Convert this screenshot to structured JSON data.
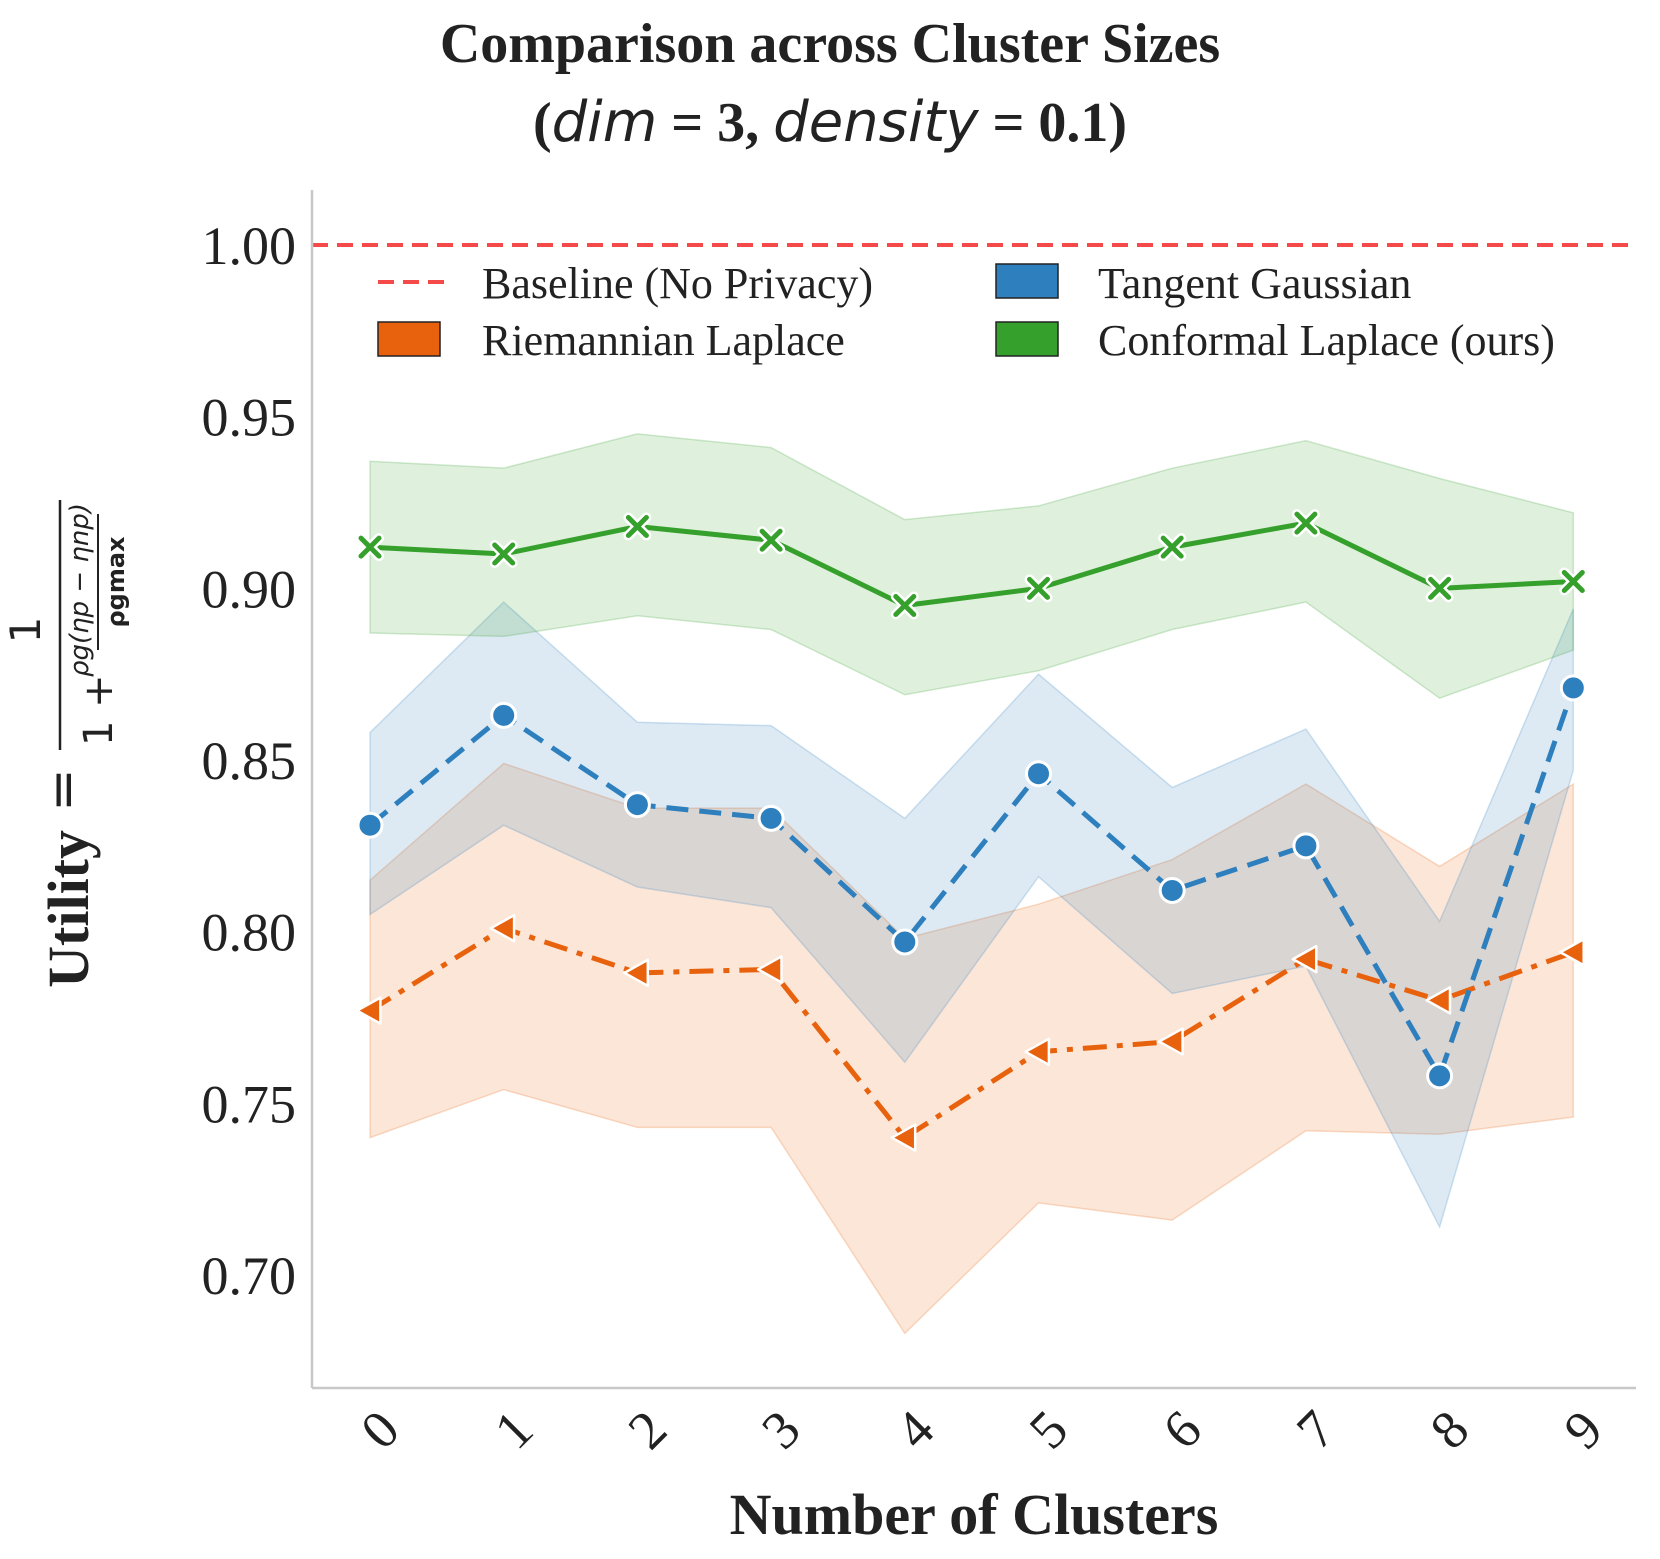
{
  "chart_data": {
    "type": "line",
    "title_line1": "Comparison across Cluster Sizes",
    "title_line2": {
      "open": "(",
      "var1": "dim",
      "eq1": " = 3, ",
      "var2": "density",
      "eq2": " = 0.1)"
    },
    "xlabel": "Number of Clusters",
    "ylabel": {
      "word": "Utility",
      "eq": "=",
      "numerator": "1",
      "denominator_prefix": "1 +",
      "inner_numerator": "ρg(ηp − ηnp)",
      "inner_denominator": "ρgmax"
    },
    "x": [
      0,
      1,
      2,
      3,
      4,
      5,
      6,
      7,
      8,
      9
    ],
    "x_tick_labels": [
      "0",
      "1",
      "2",
      "3",
      "4",
      "5",
      "6",
      "7",
      "8",
      "9"
    ],
    "ylim": [
      0.67,
      1.02
    ],
    "y_ticks": [
      0.7,
      0.75,
      0.8,
      0.85,
      0.9,
      0.95,
      1.0
    ],
    "y_tick_labels": [
      "0.70",
      "0.75",
      "0.80",
      "0.85",
      "0.90",
      "0.95",
      "1.00"
    ],
    "grid": false,
    "legend_position": "top",
    "baseline": {
      "name": "Baseline (No Privacy)",
      "value": 1.0,
      "color": "#f44a4a"
    },
    "series": [
      {
        "name": "Riemannian Laplace",
        "color": "#e8620e",
        "linestyle": "dashdot",
        "marker": "triangle-left",
        "values": [
          0.777,
          0.801,
          0.788,
          0.789,
          0.74,
          0.765,
          0.768,
          0.792,
          0.78,
          0.794
        ],
        "lower": [
          0.74,
          0.754,
          0.743,
          0.743,
          0.683,
          0.721,
          0.716,
          0.742,
          0.741,
          0.746
        ],
        "upper": [
          0.815,
          0.849,
          0.836,
          0.836,
          0.798,
          0.808,
          0.821,
          0.843,
          0.819,
          0.843
        ]
      },
      {
        "name": "Tangent Gaussian",
        "color": "#2e7fbd",
        "linestyle": "dashed",
        "marker": "circle",
        "values": [
          0.831,
          0.863,
          0.837,
          0.833,
          0.797,
          0.846,
          0.812,
          0.825,
          0.758,
          0.871
        ],
        "lower": [
          0.805,
          0.831,
          0.813,
          0.807,
          0.762,
          0.816,
          0.782,
          0.79,
          0.714,
          0.847
        ],
        "upper": [
          0.858,
          0.896,
          0.861,
          0.86,
          0.833,
          0.875,
          0.842,
          0.859,
          0.803,
          0.894
        ]
      },
      {
        "name": "Conformal Laplace (ours)",
        "color": "#36a02c",
        "linestyle": "solid",
        "marker": "x",
        "values": [
          0.912,
          0.91,
          0.918,
          0.914,
          0.895,
          0.9,
          0.912,
          0.919,
          0.9,
          0.902
        ],
        "lower": [
          0.887,
          0.886,
          0.892,
          0.888,
          0.869,
          0.876,
          0.888,
          0.896,
          0.868,
          0.882
        ],
        "upper": [
          0.937,
          0.935,
          0.945,
          0.941,
          0.92,
          0.924,
          0.935,
          0.943,
          0.932,
          0.922
        ]
      }
    ]
  }
}
